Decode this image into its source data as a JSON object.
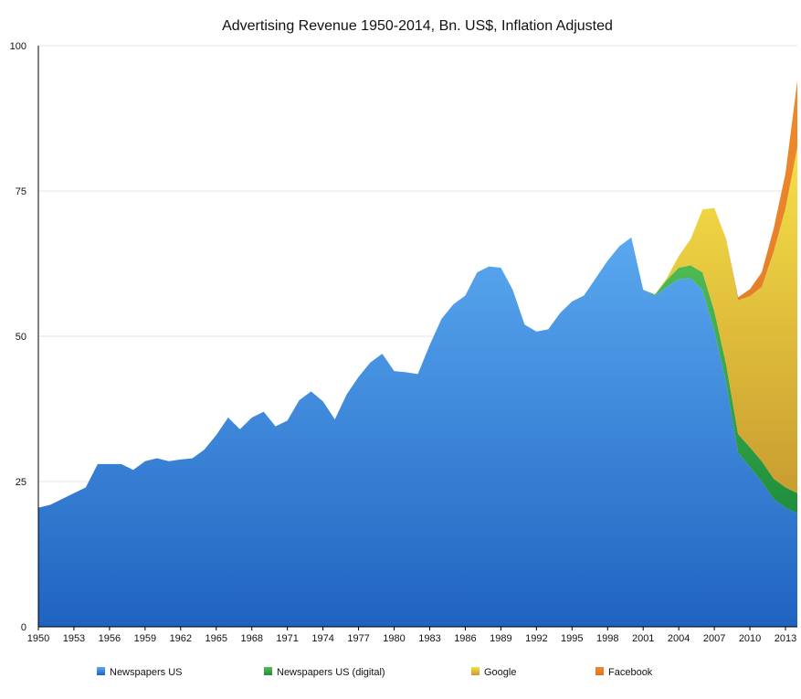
{
  "chart_data": {
    "type": "area",
    "stacked": true,
    "title": "Advertising Revenue 1950-2014, Bn. US$, Inflation Adjusted",
    "xlabel": "",
    "ylabel": "",
    "ylim": [
      0,
      100
    ],
    "xlim": [
      1950,
      2014
    ],
    "yticks": [
      0,
      25,
      50,
      75,
      100
    ],
    "xticks": [
      1950,
      1953,
      1956,
      1959,
      1962,
      1965,
      1968,
      1971,
      1974,
      1977,
      1980,
      1983,
      1986,
      1989,
      1992,
      1995,
      1998,
      2001,
      2004,
      2007,
      2010,
      2013
    ],
    "grid": true,
    "legend_position": "bottom",
    "x": [
      1950,
      1951,
      1952,
      1953,
      1954,
      1955,
      1956,
      1957,
      1958,
      1959,
      1960,
      1961,
      1962,
      1963,
      1964,
      1965,
      1966,
      1967,
      1968,
      1969,
      1970,
      1971,
      1972,
      1973,
      1974,
      1975,
      1976,
      1977,
      1978,
      1979,
      1980,
      1981,
      1982,
      1983,
      1984,
      1985,
      1986,
      1987,
      1988,
      1989,
      1990,
      1991,
      1992,
      1993,
      1994,
      1995,
      1996,
      1997,
      1998,
      1999,
      2000,
      2001,
      2002,
      2003,
      2004,
      2005,
      2006,
      2007,
      2008,
      2009,
      2010,
      2011,
      2012,
      2013,
      2014
    ],
    "series": [
      {
        "name": "Newspapers US",
        "color": "#2f7fd6",
        "values": [
          20.5,
          21,
          22,
          23,
          24,
          28,
          28,
          28,
          27,
          28.5,
          29,
          28.5,
          28.8,
          29,
          30.5,
          33,
          36,
          34,
          36,
          37,
          34.5,
          35.5,
          39,
          40.5,
          38.8,
          35.7,
          40,
          43,
          45.5,
          47,
          44,
          43.8,
          43.5,
          48.5,
          53,
          55.5,
          57,
          61,
          62,
          61.8,
          58,
          52,
          50.8,
          51.2,
          54,
          56,
          57,
          60,
          63,
          65.5,
          67,
          58,
          57,
          58.5,
          59.8,
          60,
          58,
          51,
          42,
          30,
          27.5,
          25,
          22,
          20.5,
          19.5
        ]
      },
      {
        "name": "Newspapers US (digital)",
        "color": "#2aa24a",
        "values": [
          0,
          0,
          0,
          0,
          0,
          0,
          0,
          0,
          0,
          0,
          0,
          0,
          0,
          0,
          0,
          0,
          0,
          0,
          0,
          0,
          0,
          0,
          0,
          0,
          0,
          0,
          0,
          0,
          0,
          0,
          0,
          0,
          0,
          0,
          0,
          0,
          0,
          0,
          0,
          0,
          0,
          0,
          0,
          0,
          0,
          0,
          0,
          0,
          0,
          0,
          0,
          0,
          0.2,
          1.2,
          2,
          2.2,
          3,
          3.3,
          3.1,
          3.2,
          3.4,
          3.5,
          3.5,
          3.5,
          3.5
        ]
      },
      {
        "name": "Google",
        "color": "#e6c533",
        "values": [
          0,
          0,
          0,
          0,
          0,
          0,
          0,
          0,
          0,
          0,
          0,
          0,
          0,
          0,
          0,
          0,
          0,
          0,
          0,
          0,
          0,
          0,
          0,
          0,
          0,
          0,
          0,
          0,
          0,
          0,
          0,
          0,
          0,
          0,
          0,
          0,
          0,
          0,
          0,
          0,
          0,
          0,
          0,
          0,
          0,
          0,
          0,
          0,
          0,
          0,
          0,
          0,
          0,
          0.3,
          2,
          4.5,
          10.8,
          17.8,
          21.6,
          23,
          26,
          30,
          39,
          48,
          59.5
        ]
      },
      {
        "name": "Facebook",
        "color": "#e8822e",
        "values": [
          0,
          0,
          0,
          0,
          0,
          0,
          0,
          0,
          0,
          0,
          0,
          0,
          0,
          0,
          0,
          0,
          0,
          0,
          0,
          0,
          0,
          0,
          0,
          0,
          0,
          0,
          0,
          0,
          0,
          0,
          0,
          0,
          0,
          0,
          0,
          0,
          0,
          0,
          0,
          0,
          0,
          0,
          0,
          0,
          0,
          0,
          0,
          0,
          0,
          0,
          0,
          0,
          0,
          0,
          0,
          0,
          0,
          0,
          0,
          0.5,
          1.2,
          2.5,
          4,
          6,
          11.5
        ]
      }
    ]
  }
}
